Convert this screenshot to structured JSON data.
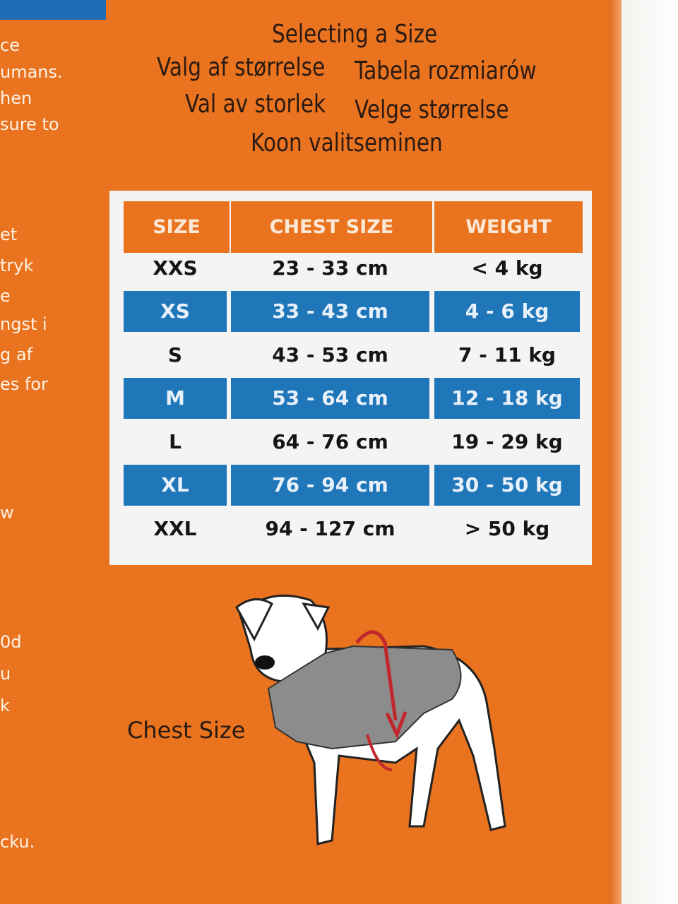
{
  "heading": [
    "Selecting a Size",
    "Valg af størrelse",
    "Tabela rozmiarów",
    "Val av storlek",
    "Velge størrelse",
    "Koon valitseminen"
  ],
  "side_text": [
    "ce",
    "umans.",
    "hen",
    "sure to",
    "et",
    "tryk",
    "e",
    "ngst i",
    "g af",
    "es for",
    "w",
    "0d",
    "u",
    "k",
    "cku."
  ],
  "table": {
    "headers": [
      "SIZE",
      "CHEST SIZE",
      "WEIGHT"
    ],
    "rows": [
      [
        "XXS",
        "23 - 33 cm",
        "< 4 kg"
      ],
      [
        "XS",
        "33 - 43 cm",
        "4 - 6 kg"
      ],
      [
        "S",
        "43 - 53 cm",
        "7 - 11 kg"
      ],
      [
        "M",
        "53 - 64 cm",
        "12 - 18 kg"
      ],
      [
        "L",
        "64 - 76 cm",
        "19 - 29 kg"
      ],
      [
        "XL",
        "76 - 94 cm",
        "30 - 50 kg"
      ],
      [
        "XXL",
        "94 - 127 cm",
        "> 50 kg"
      ]
    ]
  },
  "diagram_label": "Chest Size"
}
